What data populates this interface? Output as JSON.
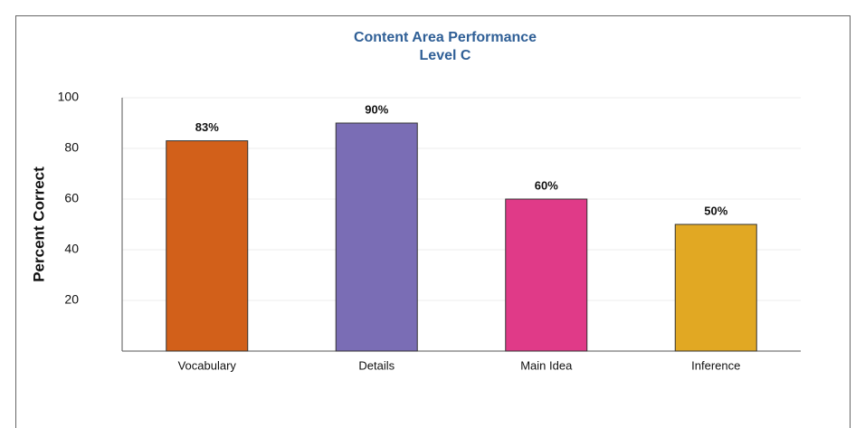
{
  "chart_data": {
    "type": "bar",
    "title": "Content Area Performance",
    "subtitle": "Level C",
    "ylabel": "Percent Correct",
    "categories": [
      "Vocabulary",
      "Details",
      "Main Idea",
      "Inference"
    ],
    "values": [
      83,
      90,
      60,
      50
    ],
    "value_labels": [
      "83%",
      "90%",
      "60%",
      "50%"
    ],
    "colors": [
      "#d2601a",
      "#7a6db5",
      "#e03a88",
      "#e1a823"
    ],
    "ylim": [
      0,
      100
    ],
    "yticks": [
      20,
      40,
      60,
      80,
      100
    ],
    "grid": true
  }
}
